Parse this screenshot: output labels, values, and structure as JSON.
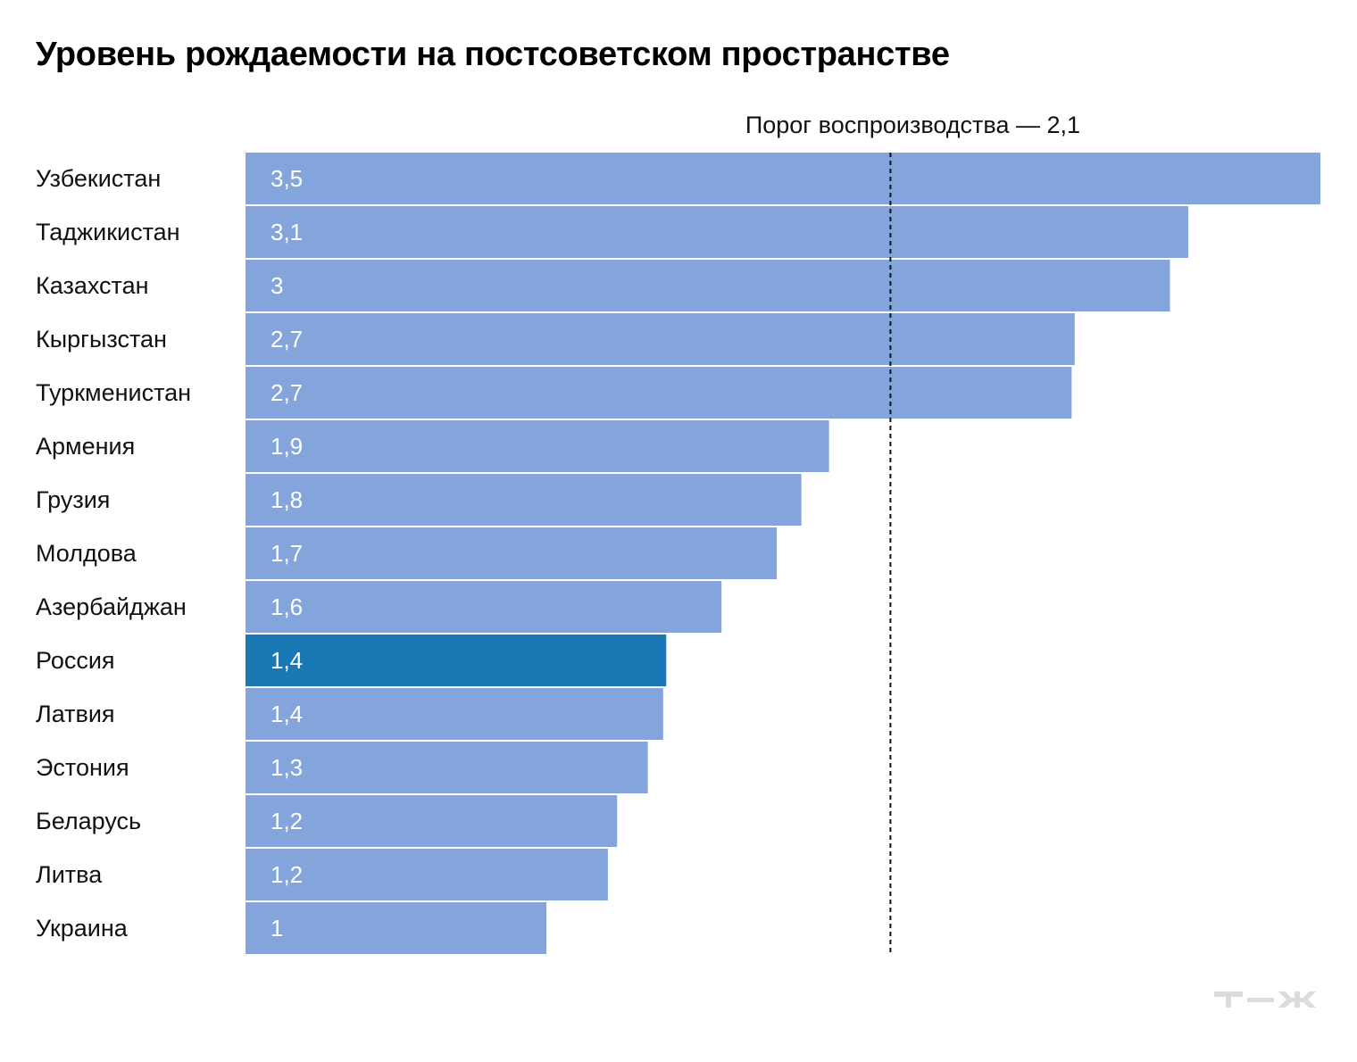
{
  "chart_data": {
    "type": "bar",
    "orientation": "horizontal",
    "title": "Уровень рождаемости на постсоветском пространстве",
    "categories": [
      "Узбекистан",
      "Таджикистан",
      "Казахстан",
      "Кыргызстан",
      "Туркменистан",
      "Армения",
      "Грузия",
      "Молдова",
      "Азербайджан",
      "Россия",
      "Латвия",
      "Эстония",
      "Беларусь",
      "Литва",
      "Украина"
    ],
    "values": [
      3.5,
      3.07,
      3.01,
      2.7,
      2.69,
      1.9,
      1.81,
      1.73,
      1.55,
      1.37,
      1.36,
      1.31,
      1.21,
      1.18,
      0.98
    ],
    "data_labels": [
      "3,5",
      "3,1",
      "3",
      "2,7",
      "2,7",
      "1,9",
      "1,8",
      "1,7",
      "1,6",
      "1,4",
      "1,4",
      "1,3",
      "1,2",
      "1,2",
      "1"
    ],
    "highlight": "Россия",
    "xlim": [
      0,
      3.5
    ],
    "grid": false,
    "reference_line": {
      "value": 2.1,
      "label": "Порог воспроизводства — 2,1",
      "style": "dashed"
    },
    "colors": {
      "bar": "#84A4DC",
      "highlight": "#1A78B4",
      "text": "#111111",
      "value_text": "#FFFFFF"
    }
  },
  "logo": "Т—Ж"
}
